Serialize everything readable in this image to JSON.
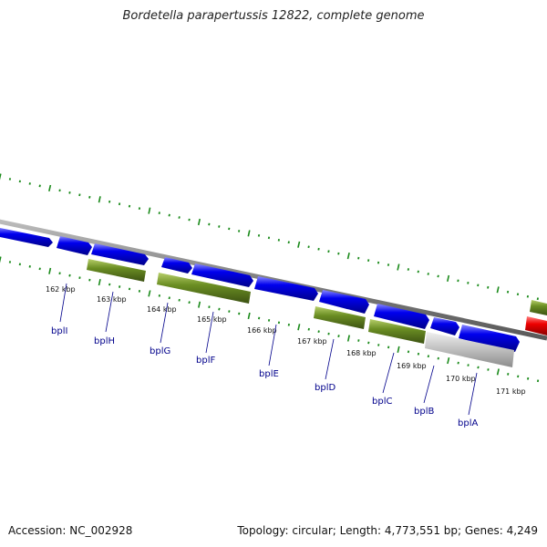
{
  "title": "Bordetella parapertussis 12822, complete genome",
  "accession": "Accession: NC_002928",
  "summary": "Topology: circular; Length: 4,773,551 bp; Genes: 4,249",
  "colors": {
    "forward_cds": "#0000ee",
    "reverse_cds": "#6b8e23",
    "pseudo": "#c0c0c0",
    "rna": "#ee0000",
    "backbone": "#808080",
    "ticks": "#1a8a1a",
    "label": "#00008b"
  },
  "kbp_ticks": [
    "162 kbp",
    "163 kbp",
    "164 kbp",
    "165 kbp",
    "166 kbp",
    "167 kbp",
    "168 kbp",
    "169 kbp",
    "170 kbp",
    "171 kbp"
  ],
  "genes": [
    {
      "name": "bplI"
    },
    {
      "name": "bplH"
    },
    {
      "name": "bplG"
    },
    {
      "name": "bplF"
    },
    {
      "name": "bplE"
    },
    {
      "name": "bplD"
    },
    {
      "name": "bplC"
    },
    {
      "name": "bplB"
    },
    {
      "name": "bplA"
    }
  ]
}
